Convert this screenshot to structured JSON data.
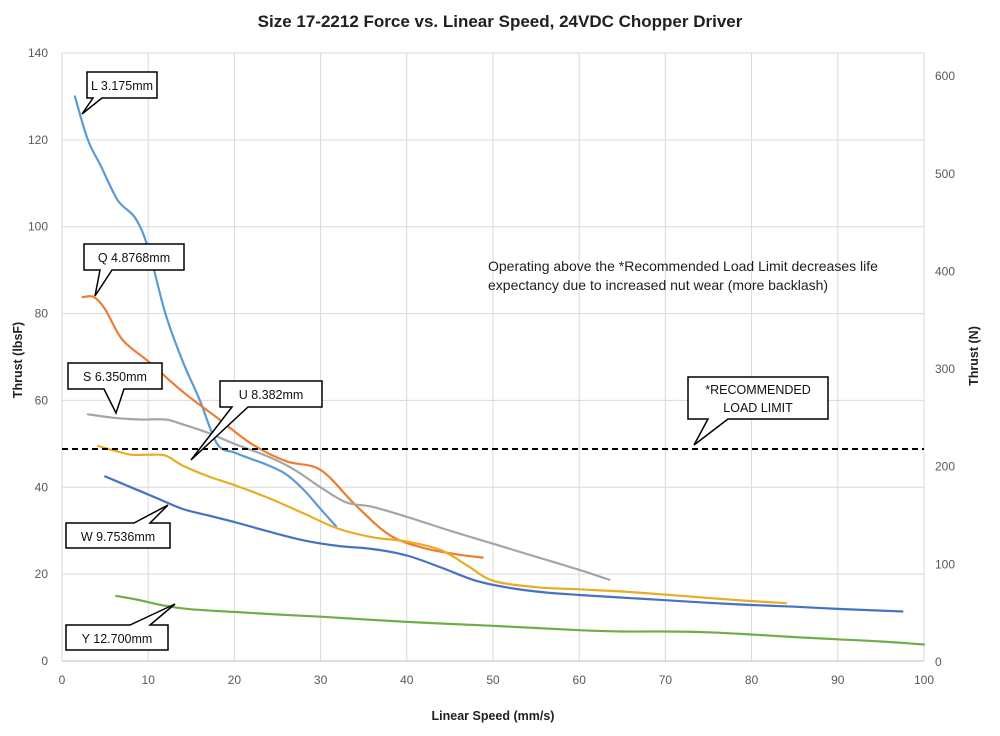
{
  "chart_data": {
    "type": "line",
    "title": "Size 17-2212 Force vs. Linear Speed, 24VDC Chopper Driver",
    "xlabel": "Linear Speed (mm/s)",
    "ylabel": "Thrust (lbsF)",
    "y2label": "Thrust (N)",
    "xlim": [
      0,
      100
    ],
    "ylim": [
      0,
      140
    ],
    "y2lim": [
      0,
      622.75
    ],
    "xticks": [
      0,
      10,
      20,
      30,
      40,
      50,
      60,
      70,
      80,
      90,
      100
    ],
    "yticks": [
      0,
      20,
      40,
      60,
      80,
      100,
      120,
      140
    ],
    "y2ticks": [
      0,
      100,
      200,
      300,
      400,
      500,
      600
    ],
    "grid": true,
    "legend": "none",
    "series": [
      {
        "name": "L 3.175mm",
        "color": "#5b9bd5",
        "x": [
          1.5,
          3,
          4.5,
          6.5,
          8.5,
          10,
          12,
          14,
          16,
          18,
          20,
          22,
          24,
          26,
          28,
          30,
          31.8
        ],
        "y": [
          130,
          120,
          114,
          106,
          102,
          95,
          80,
          69,
          60,
          50,
          48,
          46.5,
          45,
          43,
          39.5,
          35,
          31
        ]
      },
      {
        "name": "Q 4.8768mm",
        "color": "#ed7d31",
        "x": [
          2.4,
          3.7,
          5,
          7,
          10,
          14,
          18,
          22,
          26,
          30,
          34,
          38,
          42,
          46,
          48.8
        ],
        "y": [
          83.8,
          83.8,
          81,
          74,
          69,
          62,
          56,
          50,
          46,
          44,
          36,
          29,
          26,
          24.5,
          23.8
        ]
      },
      {
        "name": "S 6.350mm",
        "color": "#a5a5a5",
        "x": [
          3,
          6,
          9,
          12,
          14,
          17,
          20,
          24,
          27,
          30,
          33,
          36,
          40,
          45,
          50,
          55,
          60,
          63.5
        ],
        "y": [
          56.8,
          56,
          55.6,
          55.6,
          54.5,
          52.5,
          50,
          47,
          44,
          40,
          36.5,
          35.5,
          33.2,
          30,
          27,
          24,
          21,
          18.7
        ]
      },
      {
        "name": "U 8.382mm",
        "color": "#e9ad25",
        "x": [
          4.2,
          6,
          8,
          10,
          12,
          14,
          17,
          20,
          24,
          28,
          32,
          36,
          40,
          44,
          47,
          50,
          55,
          60,
          65,
          70,
          75,
          80,
          84
        ],
        "y": [
          49.5,
          48.5,
          47.5,
          47.5,
          47.3,
          45,
          42.5,
          40.5,
          37.5,
          34,
          30.5,
          28.5,
          27.5,
          25.5,
          22,
          18.5,
          17,
          16.5,
          16,
          15.3,
          14.5,
          13.8,
          13.3
        ]
      },
      {
        "name": "W 9.7536mm",
        "color": "#4472c4",
        "x": [
          5,
          8,
          11,
          14,
          17,
          20,
          24,
          28,
          32,
          36,
          40,
          44,
          48,
          52,
          56,
          60,
          65,
          70,
          75,
          80,
          85,
          90,
          95,
          97.5
        ],
        "y": [
          42.5,
          40,
          37.5,
          35,
          33.5,
          32,
          29.8,
          27.8,
          26.5,
          25.8,
          24.3,
          21.5,
          18.5,
          16.8,
          15.8,
          15.2,
          14.6,
          14,
          13.4,
          12.9,
          12.5,
          12,
          11.6,
          11.4
        ]
      },
      {
        "name": "Y 12.700mm",
        "color": "#70ad47",
        "x": [
          6.3,
          9,
          12,
          15,
          20,
          25,
          30,
          40,
          50,
          60,
          65,
          70,
          75,
          80,
          85,
          90,
          95,
          100
        ],
        "y": [
          15,
          14,
          12.7,
          11.9,
          11.3,
          10.7,
          10.2,
          9,
          8.1,
          7.1,
          6.8,
          6.8,
          6.6,
          6.1,
          5.5,
          5,
          4.5,
          3.8
        ]
      }
    ],
    "reference_line": {
      "label": "*RECOMMENDED LOAD LIMIT",
      "label_line1": "*RECOMMENDED",
      "label_line2": "LOAD LIMIT",
      "y": 49
    },
    "annotation": {
      "line1": "Operating above the *Recommended Load Limit decreases life",
      "line2": "expectancy due to increased nut wear (more backlash)"
    }
  }
}
